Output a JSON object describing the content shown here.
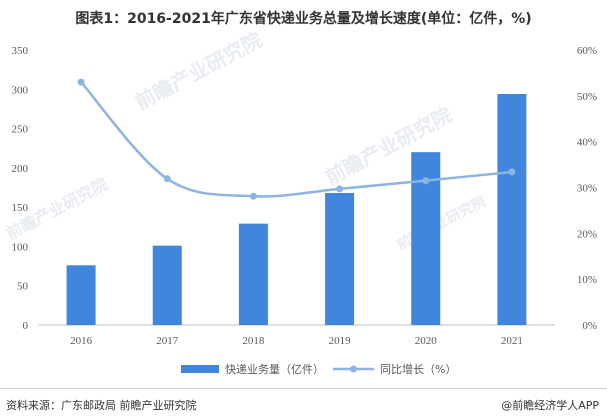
{
  "chart_data": {
    "type": "bar+line",
    "title": "图表1：2016-2021年广东省快递业务总量及增长速度(单位：亿件，%)",
    "categories": [
      "2016",
      "2017",
      "2018",
      "2019",
      "2020",
      "2021"
    ],
    "series": [
      {
        "name": "快递业务量（亿件）",
        "type": "bar",
        "axis": "left",
        "values": [
          76,
          101,
          129,
          168,
          220,
          294
        ]
      },
      {
        "name": "同比增长（%）",
        "type": "line",
        "axis": "right",
        "values": [
          53.0,
          31.9,
          28.1,
          29.7,
          31.5,
          33.4
        ]
      }
    ],
    "y_left": {
      "ylim": [
        0,
        350
      ],
      "ticks": [
        0,
        50,
        100,
        150,
        200,
        250,
        300,
        350
      ]
    },
    "y_right": {
      "ylim": [
        0,
        60
      ],
      "ticks": [
        "0%",
        "10%",
        "20%",
        "30%",
        "40%",
        "50%",
        "60%"
      ]
    },
    "legend_position": "bottom"
  },
  "footer": {
    "source": "资料来源：广东邮政局 前瞻产业研究院",
    "brand": "@前瞻经济学人APP"
  },
  "watermark": {
    "text": "前瞻产业研究院"
  },
  "colors": {
    "bar": "#3f86dc",
    "line": "#8db4e2",
    "axis": "#bfbfbf",
    "text": "#595959"
  }
}
